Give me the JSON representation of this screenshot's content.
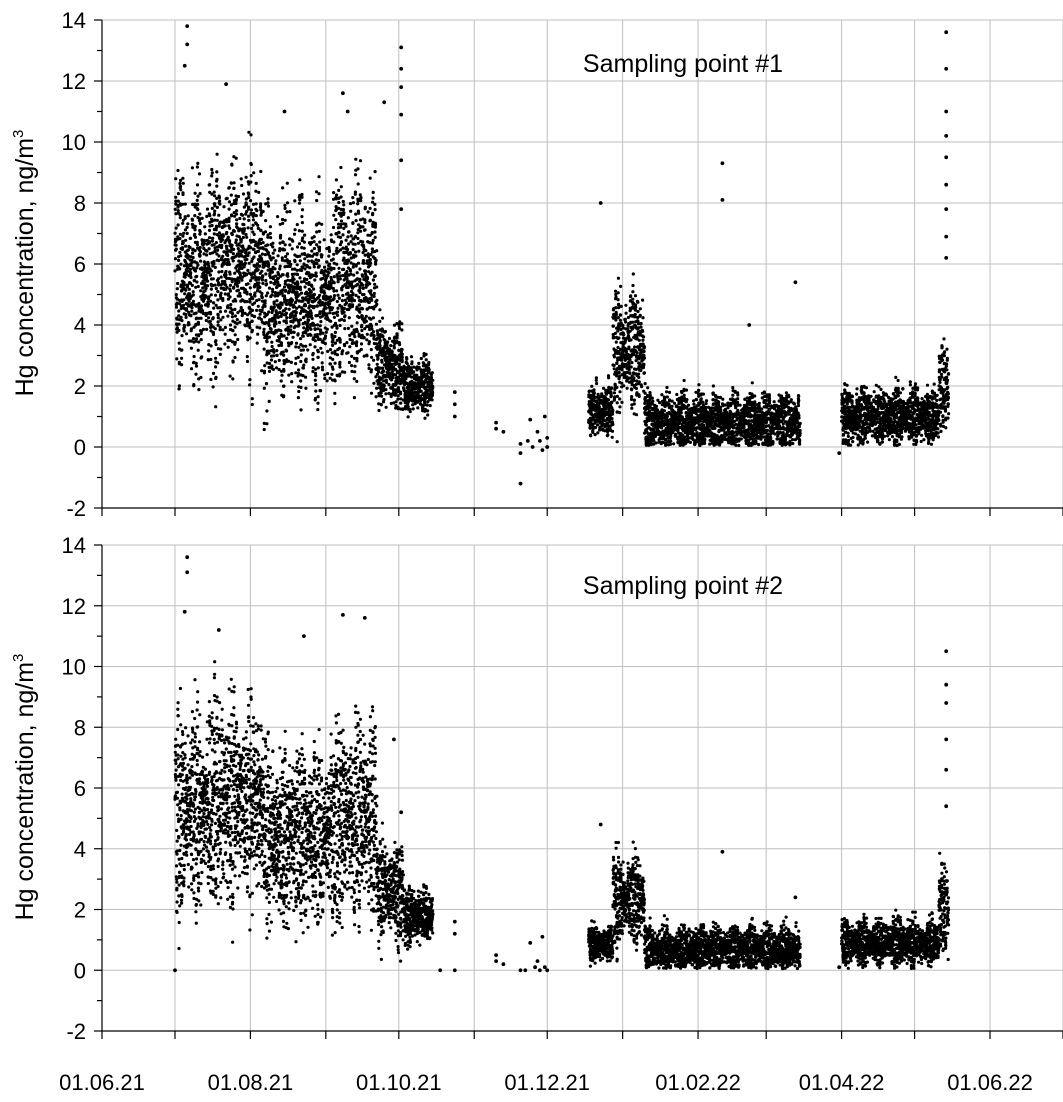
{
  "chart_data": [
    {
      "type": "scatter",
      "title": "Sampling point #1",
      "ylabel": "Hg concentration, ng/m",
      "ylabel_sup": "3",
      "ylim": [
        -2,
        14
      ],
      "yticks": [
        -2,
        0,
        2,
        4,
        6,
        8,
        10,
        12,
        14
      ],
      "xlim": [
        "2021-06-01",
        "2022-07-01"
      ],
      "grid": true,
      "color": "#000000",
      "segments": [
        {
          "start": "2021-07-01",
          "end": "2021-07-16",
          "base": 5.6,
          "amp": 2.6,
          "spread": 1.7
        },
        {
          "start": "2021-07-16",
          "end": "2021-08-06",
          "base": 6.0,
          "amp": 2.5,
          "spread": 1.8
        },
        {
          "start": "2021-08-06",
          "end": "2021-09-05",
          "base": 4.8,
          "amp": 2.3,
          "spread": 1.6
        },
        {
          "start": "2021-09-05",
          "end": "2021-09-22",
          "base": 5.5,
          "amp": 2.5,
          "spread": 1.7
        },
        {
          "start": "2021-09-22",
          "end": "2021-10-03",
          "base": 2.6,
          "amp": 1.0,
          "spread": 0.8
        },
        {
          "start": "2021-10-03",
          "end": "2021-10-15",
          "base": 2.0,
          "amp": 0.6,
          "spread": 0.5
        },
        {
          "start": "2021-12-18",
          "end": "2021-12-28",
          "base": 1.2,
          "amp": 0.5,
          "spread": 0.5
        },
        {
          "start": "2021-12-28",
          "end": "2022-01-10",
          "base": 3.2,
          "amp": 1.6,
          "spread": 0.9
        },
        {
          "start": "2022-01-10",
          "end": "2022-03-15",
          "base": 0.8,
          "amp": 0.8,
          "spread": 0.5
        },
        {
          "start": "2022-04-01",
          "end": "2022-05-11",
          "base": 1.0,
          "amp": 0.7,
          "spread": 0.5
        },
        {
          "start": "2022-05-11",
          "end": "2022-05-15",
          "base": 2.0,
          "amp": 1.0,
          "spread": 0.8
        }
      ],
      "sparse_points": [
        {
          "x": "2021-10-24",
          "y": 1.8
        },
        {
          "x": "2021-10-24",
          "y": 1.4
        },
        {
          "x": "2021-10-24",
          "y": 1.0
        },
        {
          "x": "2021-11-10",
          "y": 0.8
        },
        {
          "x": "2021-11-10",
          "y": 0.6
        },
        {
          "x": "2021-11-13",
          "y": 0.5
        },
        {
          "x": "2021-11-20",
          "y": -1.2
        },
        {
          "x": "2021-11-20",
          "y": -0.2
        },
        {
          "x": "2021-11-20",
          "y": 0.1
        },
        {
          "x": "2021-11-23",
          "y": 0.2
        },
        {
          "x": "2021-11-24",
          "y": 0.9
        },
        {
          "x": "2021-11-25",
          "y": 0.0
        },
        {
          "x": "2021-11-27",
          "y": 0.5
        },
        {
          "x": "2021-11-28",
          "y": 0.2
        },
        {
          "x": "2021-11-29",
          "y": -0.1
        },
        {
          "x": "2021-11-30",
          "y": 1.0
        },
        {
          "x": "2021-12-01",
          "y": 0.3
        },
        {
          "x": "2021-12-01",
          "y": 0.0
        },
        {
          "x": "2022-03-31",
          "y": -0.2
        }
      ],
      "spikes": [
        {
          "x": "2021-07-06",
          "y": 13.8
        },
        {
          "x": "2021-07-06",
          "y": 13.2
        },
        {
          "x": "2021-07-05",
          "y": 12.5
        },
        {
          "x": "2021-07-22",
          "y": 11.9
        },
        {
          "x": "2021-08-15",
          "y": 11.0
        },
        {
          "x": "2021-09-08",
          "y": 11.6
        },
        {
          "x": "2021-09-10",
          "y": 11.0
        },
        {
          "x": "2021-09-25",
          "y": 11.3
        },
        {
          "x": "2021-10-02",
          "y": 13.1
        },
        {
          "x": "2021-10-02",
          "y": 12.4
        },
        {
          "x": "2021-10-02",
          "y": 11.8
        },
        {
          "x": "2021-10-02",
          "y": 10.9
        },
        {
          "x": "2021-10-02",
          "y": 9.4
        },
        {
          "x": "2021-10-02",
          "y": 7.8
        },
        {
          "x": "2021-12-23",
          "y": 8.0
        },
        {
          "x": "2022-02-11",
          "y": 9.3
        },
        {
          "x": "2022-02-11",
          "y": 8.1
        },
        {
          "x": "2022-02-22",
          "y": 4.0
        },
        {
          "x": "2022-03-13",
          "y": 5.4
        },
        {
          "x": "2022-05-14",
          "y": 13.6
        },
        {
          "x": "2022-05-14",
          "y": 12.4
        },
        {
          "x": "2022-05-14",
          "y": 11.0
        },
        {
          "x": "2022-05-14",
          "y": 10.2
        },
        {
          "x": "2022-05-14",
          "y": 9.5
        },
        {
          "x": "2022-05-14",
          "y": 8.6
        },
        {
          "x": "2022-05-14",
          "y": 7.8
        },
        {
          "x": "2022-05-14",
          "y": 6.9
        },
        {
          "x": "2022-05-14",
          "y": 6.2
        }
      ]
    },
    {
      "type": "scatter",
      "title": "Sampling point #2",
      "ylabel": "Hg concentration, ng/m",
      "ylabel_sup": "3",
      "ylim": [
        -2,
        14
      ],
      "yticks": [
        -2,
        0,
        2,
        4,
        6,
        8,
        10,
        12,
        14
      ],
      "xlim": [
        "2021-06-01",
        "2022-07-01"
      ],
      "xticks": [
        "01.06.21",
        "01.08.21",
        "01.10.21",
        "01.12.21",
        "01.02.22",
        "01.04.22",
        "01.06.22"
      ],
      "grid": true,
      "color": "#000000",
      "segments": [
        {
          "start": "2021-07-01",
          "end": "2021-07-16",
          "base": 5.2,
          "amp": 2.6,
          "spread": 1.7
        },
        {
          "start": "2021-07-16",
          "end": "2021-08-06",
          "base": 5.6,
          "amp": 2.5,
          "spread": 1.8
        },
        {
          "start": "2021-08-06",
          "end": "2021-09-05",
          "base": 4.4,
          "amp": 2.2,
          "spread": 1.6
        },
        {
          "start": "2021-09-05",
          "end": "2021-09-22",
          "base": 5.0,
          "amp": 2.5,
          "spread": 1.7
        },
        {
          "start": "2021-09-22",
          "end": "2021-10-03",
          "base": 2.6,
          "amp": 1.2,
          "spread": 0.9
        },
        {
          "start": "2021-10-03",
          "end": "2021-10-15",
          "base": 1.8,
          "amp": 0.6,
          "spread": 0.5
        },
        {
          "start": "2021-12-18",
          "end": "2021-12-28",
          "base": 0.9,
          "amp": 0.4,
          "spread": 0.3
        },
        {
          "start": "2021-12-28",
          "end": "2022-01-10",
          "base": 2.3,
          "amp": 1.2,
          "spread": 0.7
        },
        {
          "start": "2022-01-10",
          "end": "2022-03-15",
          "base": 0.7,
          "amp": 0.6,
          "spread": 0.4
        },
        {
          "start": "2022-04-01",
          "end": "2022-05-11",
          "base": 0.9,
          "amp": 0.6,
          "spread": 0.4
        },
        {
          "start": "2022-05-11",
          "end": "2022-05-15",
          "base": 2.0,
          "amp": 1.0,
          "spread": 0.8
        }
      ],
      "sparse_points": [
        {
          "x": "2021-07-01",
          "y": 0.0
        },
        {
          "x": "2021-10-24",
          "y": 1.6
        },
        {
          "x": "2021-10-24",
          "y": 1.2
        },
        {
          "x": "2021-10-24",
          "y": 0.0
        },
        {
          "x": "2021-10-18",
          "y": 0.0
        },
        {
          "x": "2021-11-10",
          "y": 0.5
        },
        {
          "x": "2021-11-10",
          "y": 0.3
        },
        {
          "x": "2021-11-13",
          "y": 0.2
        },
        {
          "x": "2021-11-20",
          "y": 0.0
        },
        {
          "x": "2021-11-22",
          "y": 0.0
        },
        {
          "x": "2021-11-24",
          "y": 0.9
        },
        {
          "x": "2021-11-26",
          "y": 0.1
        },
        {
          "x": "2021-11-27",
          "y": 0.3
        },
        {
          "x": "2021-11-28",
          "y": 0.0
        },
        {
          "x": "2021-11-29",
          "y": 1.1
        },
        {
          "x": "2021-11-30",
          "y": 0.1
        },
        {
          "x": "2021-12-01",
          "y": 0.0
        },
        {
          "x": "2022-03-31",
          "y": 0.1
        }
      ],
      "spikes": [
        {
          "x": "2021-07-06",
          "y": 13.6
        },
        {
          "x": "2021-07-06",
          "y": 13.1
        },
        {
          "x": "2021-07-05",
          "y": 11.8
        },
        {
          "x": "2021-07-19",
          "y": 11.2
        },
        {
          "x": "2021-08-23",
          "y": 11.0
        },
        {
          "x": "2021-09-08",
          "y": 11.7
        },
        {
          "x": "2021-09-17",
          "y": 11.6
        },
        {
          "x": "2021-09-29",
          "y": 7.6
        },
        {
          "x": "2021-10-02",
          "y": 5.2
        },
        {
          "x": "2021-12-23",
          "y": 4.8
        },
        {
          "x": "2022-02-11",
          "y": 3.9
        },
        {
          "x": "2022-03-13",
          "y": 2.4
        },
        {
          "x": "2022-05-14",
          "y": 10.5
        },
        {
          "x": "2022-05-14",
          "y": 9.4
        },
        {
          "x": "2022-05-14",
          "y": 8.8
        },
        {
          "x": "2022-05-14",
          "y": 7.6
        },
        {
          "x": "2022-05-14",
          "y": 6.6
        },
        {
          "x": "2022-05-14",
          "y": 5.4
        }
      ]
    }
  ]
}
